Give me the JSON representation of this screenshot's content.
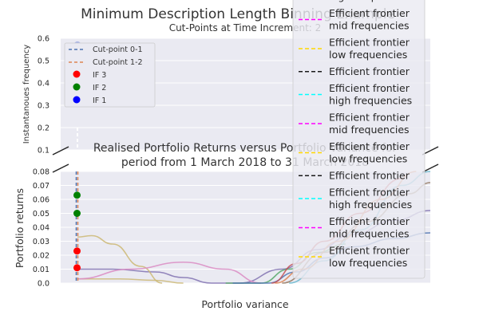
{
  "colors": {
    "background": "#eaeaf2",
    "grid": "#ffffff",
    "text": "#262626",
    "cut_point_0_1": "#4c72b0",
    "cut_point_1_2": "#dd8452",
    "if3": "#ff0000",
    "if2": "#008000",
    "if1": "#0000ff",
    "frontier": "#1a1a1a",
    "frontier_high": "#00ffff",
    "frontier_mid": "#ff00ff",
    "frontier_low": "#ffd700"
  },
  "chart_data": [
    {
      "type": "scatter",
      "title": "Minimum Description Length Binning Example",
      "subtitle": "Cut-Points at Time Increment: 2",
      "ylabel": "Instantanoues frequency",
      "ylim": [
        0.1,
        0.6
      ],
      "yticks": [
        "0.1",
        "0.2",
        "0.3",
        "0.4",
        "0.5",
        "0.6"
      ],
      "grid": true,
      "legend_position": "top-left",
      "legend": [
        {
          "label": "Cut-point 0-1",
          "kind": "dashed-line",
          "color": "#4c72b0"
        },
        {
          "label": "Cut-point 1-2",
          "kind": "dashed-line",
          "color": "#dd8452"
        },
        {
          "label": "IF 3",
          "kind": "marker",
          "color": "#ff0000"
        },
        {
          "label": "IF 2",
          "kind": "marker",
          "color": "#008000"
        },
        {
          "label": "IF 1",
          "kind": "marker",
          "color": "#0000ff"
        }
      ],
      "series": [
        {
          "name": "IF 1",
          "x": [
            0
          ],
          "y": [
            0.57
          ]
        }
      ]
    },
    {
      "type": "line",
      "title": "Realised Portfolio Returns versus Portfolio Variance for",
      "title_line2": "period from 1 March 2018 to 31 March 2018",
      "xlabel": "Portfolio variance",
      "ylabel": "Portfolio returns",
      "ylim": [
        0.0,
        0.08
      ],
      "yticks": [
        "0.0",
        "0.01",
        "0.02",
        "0.03",
        "0.04",
        "0.05",
        "0.06",
        "0.07",
        "0.08"
      ],
      "grid": true,
      "legend_position": "top-right",
      "legend": [
        {
          "label": "high frequencies",
          "color": "#00ffff"
        },
        {
          "label": "Efficient frontier mid frequencies",
          "color": "#ff00ff"
        },
        {
          "label": "Efficient frontier low frequencies",
          "color": "#ffd700"
        },
        {
          "label": "Efficient frontier",
          "color": "#1a1a1a"
        },
        {
          "label": "Efficient frontier high frequencies",
          "color": "#00ffff"
        },
        {
          "label": "Efficient frontier mid frequencies",
          "color": "#ff00ff"
        },
        {
          "label": "Efficient frontier low frequencies",
          "color": "#ffd700"
        },
        {
          "label": "Efficient frontier",
          "color": "#1a1a1a"
        },
        {
          "label": "Efficient frontier high frequencies",
          "color": "#00ffff"
        },
        {
          "label": "Efficient frontier mid frequencies",
          "color": "#ff00ff"
        },
        {
          "label": "Efficient frontier low frequencies",
          "color": "#ffd700"
        }
      ],
      "points": [
        {
          "name": "IF 2",
          "x": 0,
          "y": 0.063,
          "color": "#008000"
        },
        {
          "name": "IF 2",
          "x": 0,
          "y": 0.05,
          "color": "#008000"
        },
        {
          "name": "IF 3",
          "x": 0,
          "y": 0.023,
          "color": "#ff0000"
        },
        {
          "name": "IF 3",
          "x": 0,
          "y": 0.011,
          "color": "#ff0000"
        }
      ],
      "curves": [
        {
          "color": "#8172b2",
          "x": [
            0.0,
            0.1,
            0.22,
            0.3,
            0.38,
            0.46,
            0.58,
            0.68,
            0.78,
            0.9,
            1.0
          ],
          "y": [
            0.01,
            0.01,
            0.008,
            0.004,
            0.0,
            0.0,
            0.01,
            0.024,
            0.035,
            0.045,
            0.052
          ]
        },
        {
          "color": "#ccb974",
          "x": [
            0.0,
            0.04,
            0.1,
            0.18,
            0.24
          ],
          "y": [
            0.033,
            0.034,
            0.028,
            0.012,
            0.0
          ]
        },
        {
          "color": "#ccb974",
          "x": [
            0.0,
            0.12,
            0.22,
            0.3
          ],
          "y": [
            0.003,
            0.003,
            0.002,
            0.0
          ]
        },
        {
          "color": "#da8bc3",
          "x": [
            0.0,
            0.15,
            0.3,
            0.42,
            0.52
          ],
          "y": [
            0.003,
            0.01,
            0.015,
            0.01,
            0.0
          ]
        },
        {
          "color": "#55a868",
          "x": [
            0.42,
            0.52,
            0.6,
            0.68,
            0.76
          ],
          "y": [
            0.0,
            0.0,
            0.01,
            0.022,
            0.028
          ]
        },
        {
          "color": "#4c72b0",
          "x": [
            0.44,
            0.54,
            0.62,
            0.7,
            0.78,
            0.9,
            1.0
          ],
          "y": [
            0.0,
            0.0,
            0.008,
            0.018,
            0.026,
            0.032,
            0.036
          ]
        },
        {
          "color": "#c44e52",
          "x": [
            0.55,
            0.62,
            0.7,
            0.8,
            0.92
          ],
          "y": [
            0.0,
            0.014,
            0.03,
            0.05,
            0.075
          ]
        },
        {
          "color": "#64b5cd",
          "x": [
            0.6,
            0.7,
            0.8,
            0.92,
            1.0
          ],
          "y": [
            0.0,
            0.016,
            0.038,
            0.07,
            0.08
          ]
        },
        {
          "color": "#dd8452",
          "x": [
            0.56,
            0.64,
            0.74,
            0.86,
            0.96
          ],
          "y": [
            0.0,
            0.01,
            0.03,
            0.06,
            0.08
          ]
        },
        {
          "color": "#937860",
          "x": [
            0.58,
            0.7,
            0.82,
            0.94,
            1.0
          ],
          "y": [
            0.0,
            0.022,
            0.044,
            0.064,
            0.072
          ]
        }
      ]
    }
  ]
}
